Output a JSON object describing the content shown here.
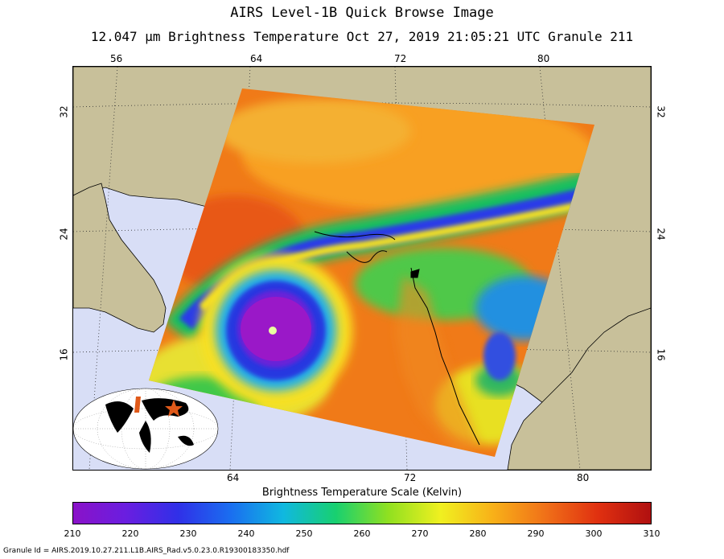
{
  "header": {
    "title": "AIRS Level-1B Quick Browse Image",
    "subtitle": "12.047 μm Brightness Temperature   Oct 27, 2019 21:05:21 UTC  Granule 211"
  },
  "map": {
    "top_lon_labels": [
      "56",
      "64",
      "72",
      "80"
    ],
    "bottom_lon_labels": [
      "64",
      "72",
      "80"
    ],
    "left_lat_labels": [
      "32",
      "24",
      "16"
    ],
    "right_lat_labels": [
      "32",
      "24",
      "16"
    ],
    "land_color": "#c8c09a",
    "ocean_color": "#d8def6",
    "storm_eye_color": "#9a18c8",
    "marker_color": "#e05a1a",
    "icons": [
      "globe-inset-icon",
      "star-marker-icon"
    ]
  },
  "colorbar": {
    "title": "Brightness Temperature Scale (Kelvin)",
    "ticks": [
      "210",
      "220",
      "230",
      "240",
      "250",
      "260",
      "270",
      "280",
      "290",
      "300",
      "310"
    ],
    "colors": [
      "#8a12c8",
      "#6a1ee0",
      "#3030e8",
      "#1a6ef0",
      "#10b8e0",
      "#18d070",
      "#90e020",
      "#f0f020",
      "#f8b018",
      "#f07018",
      "#e03010",
      "#b01010"
    ]
  },
  "footer": {
    "granule_id": "Granule Id = AIRS.2019.10.27.211.L1B.AIRS_Rad.v5.0.23.0.R19300183350.hdf"
  }
}
